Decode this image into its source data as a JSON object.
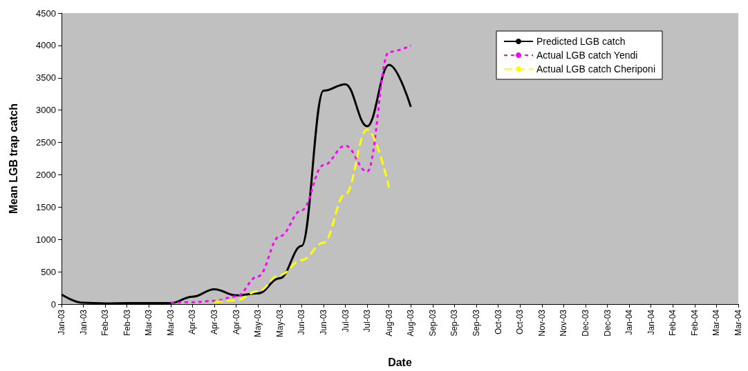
{
  "chart_data": {
    "type": "line",
    "xlabel": "Date",
    "ylabel": "Mean LGB trap catch",
    "categories": [
      "Jan-03",
      "Jan-03",
      "Feb-03",
      "Feb-03",
      "Mar-03",
      "Mar-03",
      "Apr-03",
      "Apr-03",
      "Apr-03",
      "May-03",
      "May-03",
      "Jun-03",
      "Jun-03",
      "Jul-03",
      "Jul-03",
      "Aug-03",
      "Aug-03",
      "Sep-03",
      "Sep-03",
      "Sep-03",
      "Oct-03",
      "Oct-03",
      "Nov-03",
      "Nov-03",
      "Dec-03",
      "Dec-03",
      "Jan-04",
      "Jan-04",
      "Feb-04",
      "Feb-04",
      "Mar-04",
      "Mar-04"
    ],
    "series": [
      {
        "name": "Predicted LGB catch",
        "color": "#000000",
        "line_style": "solid",
        "values": [
          150,
          20,
          10,
          15,
          15,
          15,
          115,
          230,
          135,
          165,
          400,
          900,
          3300,
          3400,
          2750,
          3700,
          3050,
          null,
          null,
          null,
          null,
          null,
          null,
          null,
          null,
          null,
          null,
          null,
          null,
          null,
          null,
          null
        ]
      },
      {
        "name": "Actual LGB catch Yendi",
        "color": "#ff00ff",
        "line_style": "dotted",
        "values": [
          null,
          null,
          null,
          null,
          null,
          20,
          30,
          50,
          120,
          430,
          1050,
          1450,
          2150,
          2450,
          2050,
          3900,
          4000,
          null,
          null,
          null,
          null,
          null,
          null,
          null,
          null,
          null,
          null,
          null,
          null,
          null,
          null,
          null
        ]
      },
      {
        "name": "Actual LGB catch Cheriponi",
        "color": "#ffff00",
        "line_style": "dashed",
        "values": [
          null,
          null,
          null,
          null,
          null,
          null,
          null,
          30,
          60,
          200,
          450,
          680,
          950,
          1700,
          2700,
          1800,
          null,
          null,
          null,
          null,
          null,
          null,
          null,
          null,
          null,
          null,
          null,
          null,
          null,
          null,
          null,
          null
        ]
      }
    ],
    "ylim": [
      0,
      4500
    ],
    "yticks": [
      0,
      500,
      1000,
      1500,
      2000,
      2500,
      3000,
      3500,
      4000,
      4500
    ],
    "grid": false,
    "legend": "top right",
    "marker": "none"
  }
}
